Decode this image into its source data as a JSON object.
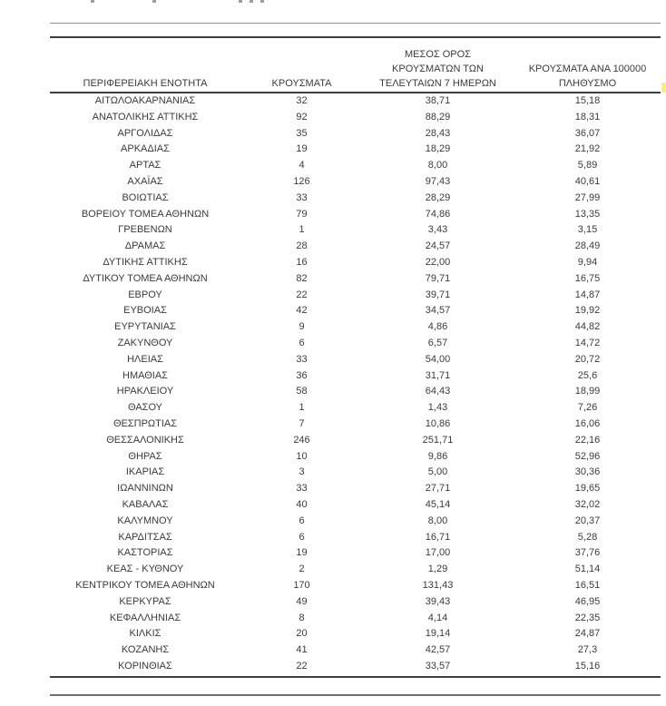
{
  "page": {
    "background": "#ffffff",
    "text_color": "#3b3b3b",
    "rule_dark_color": "#3f3f3f",
    "rule_light_color": "#8f8f8f",
    "highlight_color": "#ffef6e"
  },
  "top_cropped_line": {
    "description": "bottom remnants of a cropped text line",
    "fragments": [
      "·",
      "·",
      "·",
      "·",
      "·"
    ]
  },
  "table": {
    "headers": [
      "ΠΕΡΙΦΕΡΕΙΑΚΗ ΕΝΟΤΗΤΑ",
      "ΚΡΟΥΣΜΑΤΑ",
      "ΜΕΣΟΣ ΟΡΟΣ\nΚΡΟΥΣΜΑΤΩΝ ΤΩΝ\nΤΕΛΕΥΤΑΙΩΝ 7 ΗΜΕΡΩΝ",
      "ΚΡΟΥΣΜΑΤΑ ΑΝΑ 100000\nΠΛΗΘΥΣΜΟ"
    ],
    "rows": [
      [
        "ΑΙΤΩΛΟΑΚΑΡΝΑΝΙΑΣ",
        "32",
        "38,71",
        "15,18"
      ],
      [
        "ΑΝΑΤΟΛΙΚΗΣ ΑΤΤΙΚΗΣ",
        "92",
        "88,29",
        "18,31"
      ],
      [
        "ΑΡΓΟΛΙΔΑΣ",
        "35",
        "28,43",
        "36,07"
      ],
      [
        "ΑΡΚΑΔΙΑΣ",
        "19",
        "18,29",
        "21,92"
      ],
      [
        "ΑΡΤΑΣ",
        "4",
        "8,00",
        "5,89"
      ],
      [
        "ΑΧΑΪΑΣ",
        "126",
        "97,43",
        "40,61"
      ],
      [
        "ΒΟΙΩΤΙΑΣ",
        "33",
        "28,29",
        "27,99"
      ],
      [
        "ΒΟΡΕΙΟΥ ΤΟΜΕΑ ΑΘΗΝΩΝ",
        "79",
        "74,86",
        "13,35"
      ],
      [
        "ΓΡΕΒΕΝΩΝ",
        "1",
        "3,43",
        "3,15"
      ],
      [
        "ΔΡΑΜΑΣ",
        "28",
        "24,57",
        "28,49"
      ],
      [
        "ΔΥΤΙΚΗΣ ΑΤΤΙΚΗΣ",
        "16",
        "22,00",
        "9,94"
      ],
      [
        "ΔΥΤΙΚΟΥ ΤΟΜΕΑ ΑΘΗΝΩΝ",
        "82",
        "79,71",
        "16,75"
      ],
      [
        "ΕΒΡΟΥ",
        "22",
        "39,71",
        "14,87"
      ],
      [
        "ΕΥΒΟΙΑΣ",
        "42",
        "34,57",
        "19,92"
      ],
      [
        "ΕΥΡΥΤΑΝΙΑΣ",
        "9",
        "4,86",
        "44,82"
      ],
      [
        "ΖΑΚΥΝΘΟΥ",
        "6",
        "6,57",
        "14,72"
      ],
      [
        "ΗΛΕΙΑΣ",
        "33",
        "54,00",
        "20,72"
      ],
      [
        "ΗΜΑΘΙΑΣ",
        "36",
        "31,71",
        "25,6"
      ],
      [
        "ΗΡΑΚΛΕΙΟΥ",
        "58",
        "64,43",
        "18,99"
      ],
      [
        "ΘΑΣΟΥ",
        "1",
        "1,43",
        "7,26"
      ],
      [
        "ΘΕΣΠΡΩΤΙΑΣ",
        "7",
        "10,86",
        "16,06"
      ],
      [
        "ΘΕΣΣΑΛΟΝΙΚΗΣ",
        "246",
        "251,71",
        "22,16"
      ],
      [
        "ΘΗΡΑΣ",
        "10",
        "9,86",
        "52,96"
      ],
      [
        "ΙΚΑΡΙΑΣ",
        "3",
        "5,00",
        "30,36"
      ],
      [
        "ΙΩΑΝΝΙΝΩΝ",
        "33",
        "27,71",
        "19,65"
      ],
      [
        "ΚΑΒΑΛΑΣ",
        "40",
        "45,14",
        "32,02"
      ],
      [
        "ΚΑΛΥΜΝΟΥ",
        "6",
        "8,00",
        "20,37"
      ],
      [
        "ΚΑΡΔΙΤΣΑΣ",
        "6",
        "16,71",
        "5,28"
      ],
      [
        "ΚΑΣΤΟΡΙΑΣ",
        "19",
        "17,00",
        "37,76"
      ],
      [
        "ΚΕΑΣ - ΚΥΘΝΟΥ",
        "2",
        "1,29",
        "51,14"
      ],
      [
        "ΚΕΝΤΡΙΚΟΥ ΤΟΜΕΑ ΑΘΗΝΩΝ",
        "170",
        "131,43",
        "16,51"
      ],
      [
        "ΚΕΡΚΥΡΑΣ",
        "49",
        "39,43",
        "46,95"
      ],
      [
        "ΚΕΦΑΛΛΗΝΙΑΣ",
        "8",
        "4,14",
        "22,35"
      ],
      [
        "ΚΙΛΚΙΣ",
        "20",
        "19,14",
        "24,87"
      ],
      [
        "ΚΟΖΑΝΗΣ",
        "41",
        "42,57",
        "27,3"
      ],
      [
        "ΚΟΡΙΝΘΙΑΣ",
        "22",
        "33,57",
        "15,16"
      ]
    ]
  }
}
